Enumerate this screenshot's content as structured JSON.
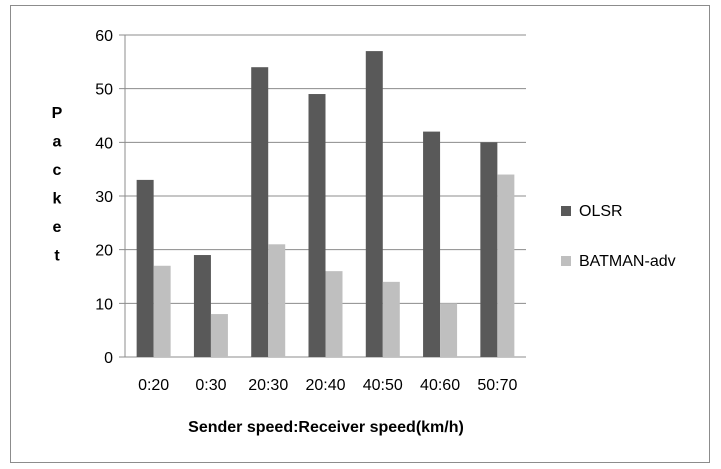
{
  "chart_data": {
    "type": "bar",
    "xlabel": "Sender speed:Receiver speed(km/h)",
    "ylabel": "Packet",
    "ylim": [
      0,
      60
    ],
    "yticks": [
      0,
      10,
      20,
      30,
      40,
      50,
      60
    ],
    "grid": true,
    "legend_position": "right",
    "categories": [
      "0:20",
      "0:30",
      "20:30",
      "20:40",
      "40:50",
      "40:60",
      "50:70"
    ],
    "series": [
      {
        "name": "OLSR",
        "color": "#595959",
        "values": [
          33,
          19,
          54,
          49,
          57,
          42,
          40
        ]
      },
      {
        "name": "BATMAN-adv",
        "color": "#bfbfbf",
        "values": [
          17,
          8,
          21,
          16,
          14,
          10,
          34
        ]
      }
    ]
  }
}
